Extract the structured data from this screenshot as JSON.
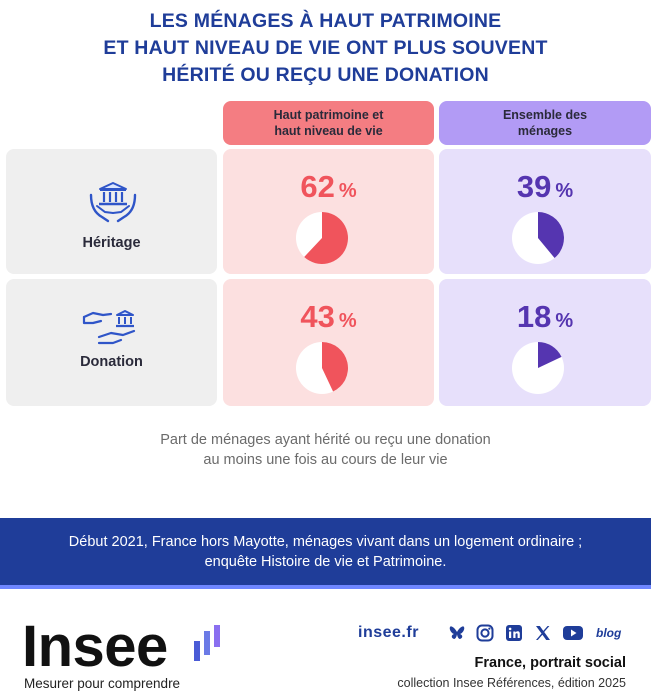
{
  "title": {
    "line1": "LES MÉNAGES À HAUT PATRIMOINE",
    "line2": "ET HAUT NIVEAU DE VIE ONT PLUS SOUVENT",
    "line3": "HÉRITÉ OU REÇU UNE DONATION"
  },
  "columns": {
    "col1": {
      "line1": "Haut patrimoine et",
      "line2": "haut niveau de vie"
    },
    "col2": {
      "line1": "Ensemble des",
      "line2": "ménages"
    }
  },
  "colors": {
    "red": "#f0545c",
    "purple": "#5535b0",
    "navy": "#1f3d99"
  },
  "rows": {
    "heritage": {
      "label": "Héritage",
      "icon": "bank-in-hands-icon"
    },
    "donation": {
      "label": "Donation",
      "icon": "hand-giving-bank-icon"
    }
  },
  "chart_data": {
    "type": "pie",
    "title": "LES MÉNAGES À HAUT PATRIMOINE ET HAUT NIVEAU DE VIE ONT PLUS SOUVENT HÉRITÉ OU REÇU UNE DONATION",
    "categories": [
      "Héritage",
      "Donation"
    ],
    "series": [
      {
        "name": "Haut patrimoine et haut niveau de vie",
        "values": [
          62,
          43
        ]
      },
      {
        "name": "Ensemble des ménages",
        "values": [
          39,
          18
        ]
      }
    ],
    "unit": "%",
    "labels": {
      "heritage_col1": "62",
      "heritage_col2": "39",
      "donation_col1": "43",
      "donation_col2": "18",
      "percent": "%"
    }
  },
  "note": {
    "line1": "Part de ménages ayant hérité ou reçu une donation",
    "line2": "au moins une fois au cours de leur vie"
  },
  "source": {
    "line1": "Début 2021, France hors Mayotte, ménages vivant dans un logement ordinaire ;",
    "line2": "enquête Histoire de vie et Patrimoine."
  },
  "footer": {
    "logo": "Insee",
    "tagline": "Mesurer pour comprendre",
    "site": "insee.fr",
    "social_icons": [
      "bluesky-icon",
      "instagram-icon",
      "linkedin-icon",
      "x-icon",
      "youtube-icon"
    ],
    "blog": "blog",
    "publication": "France, portrait social",
    "collection": "collection Insee Références, édition 2025"
  }
}
